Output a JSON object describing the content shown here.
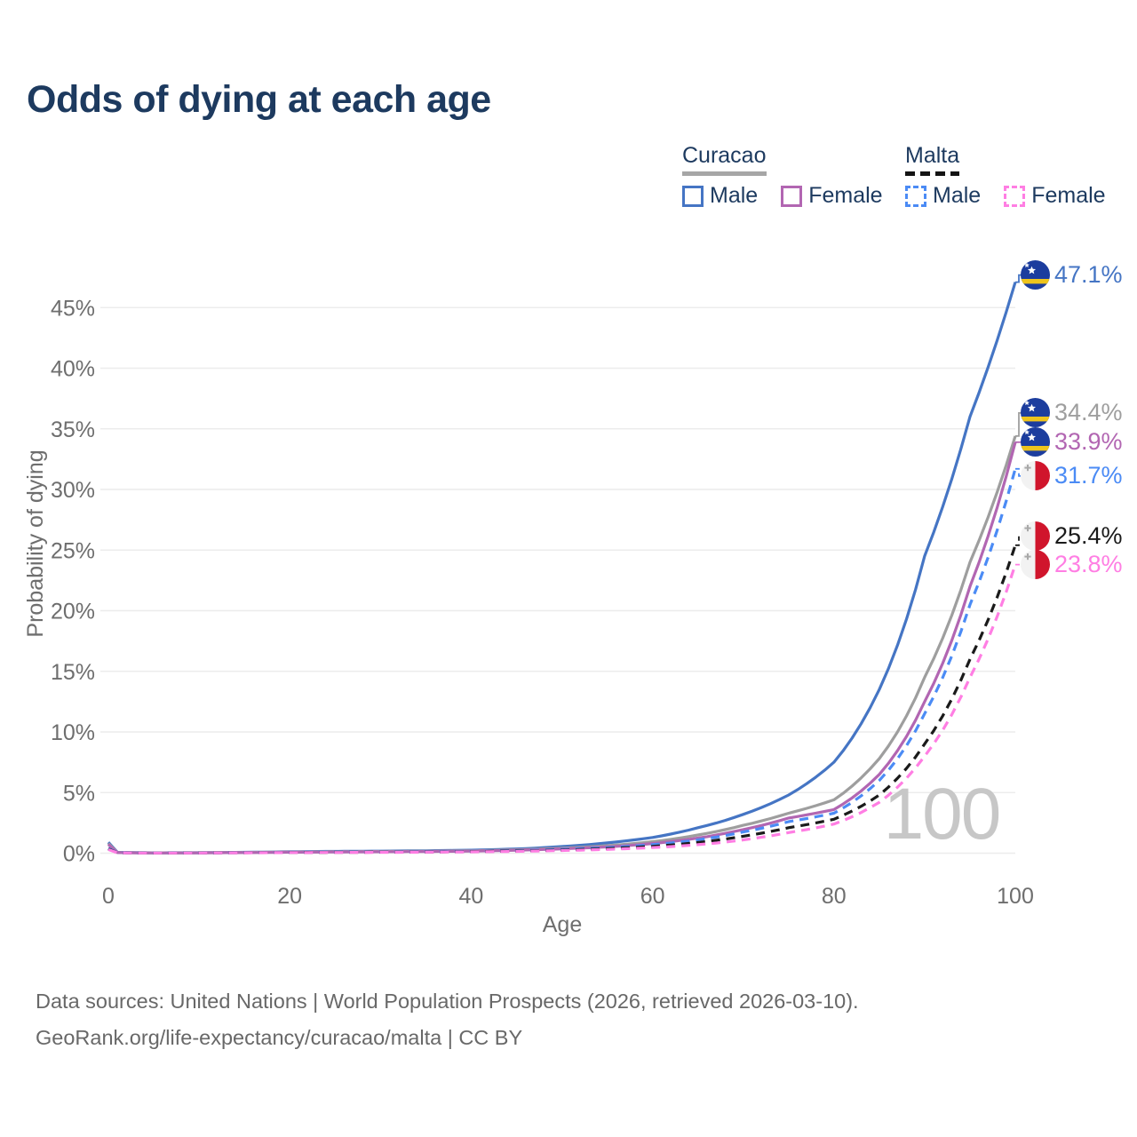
{
  "header": {
    "title": "Odds of dying at each age"
  },
  "legend": {
    "groups": [
      {
        "country": "Curacao",
        "line_style": "solid",
        "underline_color": "#a6a6a6",
        "items": [
          {
            "label": "Male",
            "color": "#4575c4"
          },
          {
            "label": "Female",
            "color": "#b266b2"
          }
        ]
      },
      {
        "country": "Malta",
        "line_style": "dashed",
        "underline_color": "#141414",
        "items": [
          {
            "label": "Male",
            "color": "#4b8bf5"
          },
          {
            "label": "Female",
            "color": "#ff7ee3"
          }
        ]
      }
    ]
  },
  "chart_data": {
    "type": "line",
    "title": "Odds of dying at each age",
    "xlabel": "Age",
    "ylabel": "Probability of dying",
    "unit": "%",
    "xlim": [
      0,
      100
    ],
    "ylim": [
      0,
      47.5
    ],
    "x_ticks": [
      0,
      20,
      40,
      60,
      80,
      100
    ],
    "y_ticks": [
      0,
      5,
      10,
      15,
      20,
      25,
      30,
      35,
      40,
      45
    ],
    "grid": "horizontal",
    "legend_position": "top-right",
    "watermark": "100",
    "x": [
      0,
      1,
      5,
      10,
      15,
      20,
      25,
      30,
      35,
      40,
      45,
      50,
      55,
      60,
      65,
      70,
      75,
      80,
      85,
      90,
      95,
      100
    ],
    "series": [
      {
        "id": "curacao-male",
        "name": "Curacao Male",
        "color": "#4575c4",
        "dash": false,
        "flag": "curacao",
        "end_label": "47.1%",
        "values": [
          0.9,
          0.07,
          0.03,
          0.04,
          0.07,
          0.12,
          0.15,
          0.17,
          0.2,
          0.25,
          0.35,
          0.55,
          0.85,
          1.3,
          2.1,
          3.2,
          4.8,
          7.5,
          13.5,
          24.5,
          36.0,
          47.1
        ]
      },
      {
        "id": "curacao-both",
        "name": "Curacao Both sexes",
        "color": "#9e9e9e",
        "dash": false,
        "flag": "curacao",
        "end_label": "34.4%",
        "values": [
          0.8,
          0.06,
          0.025,
          0.035,
          0.06,
          0.1,
          0.12,
          0.14,
          0.16,
          0.2,
          0.28,
          0.42,
          0.62,
          0.95,
          1.5,
          2.3,
          3.3,
          4.4,
          7.8,
          14.5,
          24.0,
          34.4
        ]
      },
      {
        "id": "curacao-female",
        "name": "Curacao Female",
        "color": "#b266b2",
        "dash": false,
        "flag": "curacao",
        "end_label": "33.9%",
        "values": [
          0.72,
          0.05,
          0.02,
          0.03,
          0.05,
          0.08,
          0.1,
          0.12,
          0.14,
          0.17,
          0.24,
          0.36,
          0.52,
          0.8,
          1.25,
          1.95,
          2.9,
          3.6,
          6.5,
          12.5,
          22.0,
          33.9
        ]
      },
      {
        "id": "malta-male",
        "name": "Malta Male",
        "color": "#4b8bf5",
        "dash": true,
        "flag": "malta",
        "end_label": "31.7%",
        "values": [
          0.4,
          0.04,
          0.02,
          0.025,
          0.045,
          0.07,
          0.09,
          0.1,
          0.12,
          0.15,
          0.21,
          0.32,
          0.46,
          0.7,
          1.1,
          1.75,
          2.6,
          3.3,
          6.0,
          11.5,
          20.5,
          31.7
        ]
      },
      {
        "id": "malta-both",
        "name": "Malta Both sexes",
        "color": "#1a1a1a",
        "dash": true,
        "flag": "malta",
        "end_label": "25.4%",
        "values": [
          0.35,
          0.035,
          0.016,
          0.02,
          0.038,
          0.06,
          0.07,
          0.08,
          0.1,
          0.13,
          0.18,
          0.26,
          0.38,
          0.56,
          0.88,
          1.4,
          2.1,
          2.8,
          4.8,
          9.0,
          16.0,
          25.4
        ]
      },
      {
        "id": "malta-female",
        "name": "Malta Female",
        "color": "#ff7ee3",
        "dash": true,
        "flag": "malta",
        "end_label": "23.8%",
        "values": [
          0.3,
          0.03,
          0.013,
          0.018,
          0.032,
          0.05,
          0.06,
          0.07,
          0.085,
          0.11,
          0.15,
          0.22,
          0.31,
          0.46,
          0.7,
          1.1,
          1.7,
          2.4,
          4.2,
          8.0,
          14.5,
          23.8
        ]
      }
    ]
  },
  "footer": {
    "line1": "Data sources: United Nations | World Population Prospects (2026, retrieved 2026-03-10).",
    "line2": "GeoRank.org/life-expectancy/curacao/malta | CC BY"
  }
}
